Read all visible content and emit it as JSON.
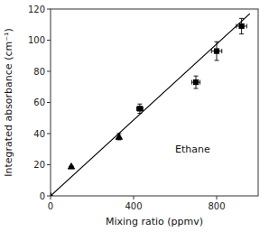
{
  "chart_data": {
    "type": "scatter",
    "xlabel": "Mixing ratio (ppmv)",
    "ylabel": "Integrated absorbance (cm⁻¹)",
    "annotation": "Ethane",
    "xlim": [
      0,
      1000
    ],
    "ylim": [
      0,
      120
    ],
    "xticks": [
      0,
      400,
      800
    ],
    "yticks": [
      0,
      20,
      40,
      60,
      80,
      100,
      120
    ],
    "grid": false,
    "series": [
      {
        "type": "scatter",
        "marker": "triangle",
        "color": "black",
        "x": [
          0,
          100,
          330
        ],
        "values": [
          0,
          19,
          38
        ],
        "xerr": [
          0,
          0,
          0
        ],
        "yerr": [
          0,
          0,
          2
        ]
      },
      {
        "type": "scatter",
        "marker": "square",
        "color": "black",
        "x": [
          430,
          700,
          800,
          920
        ],
        "values": [
          56,
          73,
          93,
          109
        ],
        "xerr": [
          15,
          20,
          25,
          25
        ],
        "yerr": [
          3,
          4,
          6,
          5
        ]
      },
      {
        "type": "line",
        "color": "black",
        "x": [
          0,
          960
        ],
        "values": [
          0,
          117
        ]
      }
    ]
  }
}
